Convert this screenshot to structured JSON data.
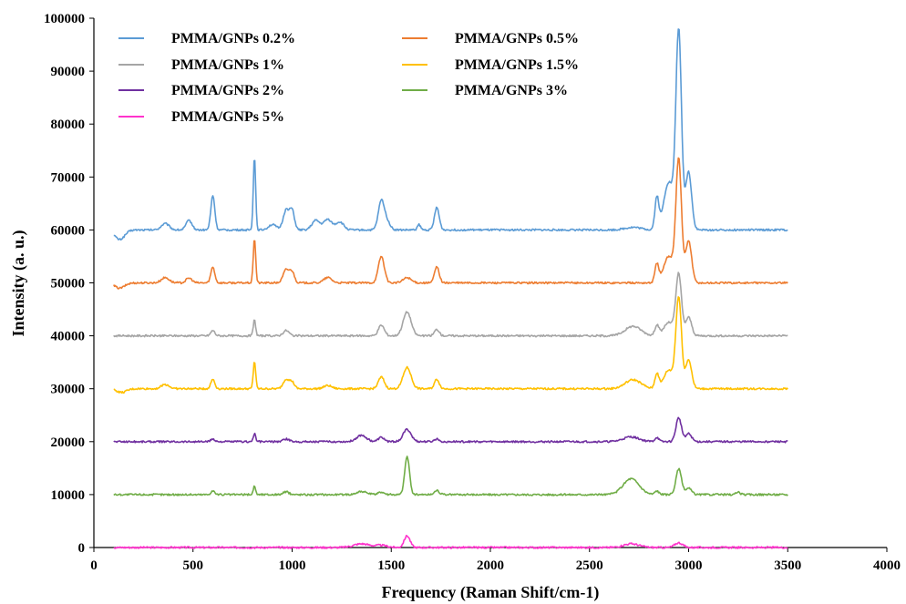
{
  "chart_data": {
    "type": "line",
    "xlabel": "Frequency (Raman Shift/cm-1)",
    "ylabel": "Intensity (a. u.)",
    "xlim": [
      0,
      4000
    ],
    "ylim": [
      0,
      100000
    ],
    "x_ticks": [
      "0",
      "500",
      "1000",
      "1500",
      "2000",
      "2500",
      "3000",
      "3500",
      "4000"
    ],
    "y_ticks": [
      "0",
      "10000",
      "20000",
      "30000",
      "40000",
      "50000",
      "60000",
      "70000",
      "80000",
      "90000",
      "100000"
    ],
    "grid": false,
    "legend_position": "top-left",
    "x_range": [
      100,
      3500
    ],
    "series": [
      {
        "name": "PMMA/GNPs 0.2%",
        "color": "#5B9BD5",
        "baseline": 60000,
        "peaks": [
          [
            100,
            0,
            1
          ],
          [
            130,
            -1800,
            25
          ],
          [
            360,
            1200,
            20
          ],
          [
            480,
            1800,
            15
          ],
          [
            600,
            6500,
            10
          ],
          [
            810,
            13800,
            6
          ],
          [
            900,
            1000,
            20
          ],
          [
            970,
            3800,
            15
          ],
          [
            1000,
            3500,
            12
          ],
          [
            1120,
            1800,
            20
          ],
          [
            1180,
            2000,
            20
          ],
          [
            1240,
            1500,
            20
          ],
          [
            1450,
            5500,
            15
          ],
          [
            1480,
            1500,
            15
          ],
          [
            1640,
            1000,
            8
          ],
          [
            1730,
            4200,
            12
          ],
          [
            2720,
            500,
            40
          ],
          [
            2840,
            6000,
            10
          ],
          [
            2900,
            9000,
            25
          ],
          [
            2950,
            37000,
            14
          ],
          [
            3000,
            11000,
            15
          ]
        ]
      },
      {
        "name": "PMMA/GNPs 0.5%",
        "color": "#ED7D31",
        "baseline": 50000,
        "peaks": [
          [
            100,
            0,
            1
          ],
          [
            130,
            -1000,
            25
          ],
          [
            360,
            1000,
            20
          ],
          [
            480,
            900,
            15
          ],
          [
            600,
            3000,
            10
          ],
          [
            810,
            8500,
            6
          ],
          [
            970,
            2500,
            15
          ],
          [
            1000,
            2000,
            12
          ],
          [
            1180,
            1000,
            20
          ],
          [
            1450,
            5000,
            15
          ],
          [
            1580,
            1000,
            20
          ],
          [
            1730,
            3000,
            12
          ],
          [
            2840,
            3500,
            10
          ],
          [
            2900,
            5000,
            25
          ],
          [
            2950,
            23000,
            14
          ],
          [
            3000,
            8000,
            15
          ]
        ]
      },
      {
        "name": "PMMA/GNPs 1%",
        "color": "#A5A5A5",
        "baseline": 40000,
        "peaks": [
          [
            600,
            1000,
            10
          ],
          [
            810,
            3000,
            6
          ],
          [
            970,
            1000,
            15
          ],
          [
            1450,
            2000,
            15
          ],
          [
            1580,
            4500,
            20
          ],
          [
            1730,
            1200,
            12
          ],
          [
            2720,
            1800,
            40
          ],
          [
            2840,
            2000,
            10
          ],
          [
            2900,
            2500,
            25
          ],
          [
            2950,
            11500,
            14
          ],
          [
            3000,
            3500,
            15
          ]
        ]
      },
      {
        "name": "PMMA/GNPs 1.5%",
        "color": "#FFC000",
        "baseline": 30000,
        "peaks": [
          [
            100,
            0,
            1
          ],
          [
            140,
            -700,
            25
          ],
          [
            360,
            800,
            20
          ],
          [
            600,
            1800,
            10
          ],
          [
            810,
            5200,
            6
          ],
          [
            970,
            1800,
            15
          ],
          [
            1000,
            1200,
            12
          ],
          [
            1180,
            600,
            20
          ],
          [
            1450,
            2200,
            15
          ],
          [
            1580,
            4000,
            20
          ],
          [
            1730,
            1800,
            12
          ],
          [
            2720,
            1700,
            40
          ],
          [
            2840,
            2800,
            10
          ],
          [
            2900,
            3500,
            25
          ],
          [
            2950,
            17000,
            14
          ],
          [
            3000,
            5500,
            15
          ]
        ]
      },
      {
        "name": "PMMA/GNPs 2%",
        "color": "#7030A0",
        "baseline": 20000,
        "peaks": [
          [
            600,
            500,
            10
          ],
          [
            810,
            1500,
            6
          ],
          [
            970,
            500,
            15
          ],
          [
            1350,
            1200,
            25
          ],
          [
            1450,
            800,
            15
          ],
          [
            1580,
            2300,
            20
          ],
          [
            1730,
            500,
            12
          ],
          [
            2710,
            900,
            40
          ],
          [
            2840,
            800,
            10
          ],
          [
            2950,
            4500,
            14
          ],
          [
            3000,
            1500,
            15
          ]
        ]
      },
      {
        "name": "PMMA/GNPs 3%",
        "color": "#70AD47",
        "baseline": 10000,
        "peaks": [
          [
            600,
            700,
            10
          ],
          [
            810,
            1600,
            6
          ],
          [
            970,
            500,
            15
          ],
          [
            1350,
            600,
            25
          ],
          [
            1450,
            500,
            15
          ],
          [
            1580,
            7200,
            12
          ],
          [
            1730,
            800,
            12
          ],
          [
            2710,
            3000,
            40
          ],
          [
            2840,
            700,
            10
          ],
          [
            2950,
            4800,
            14
          ],
          [
            3000,
            1200,
            15
          ],
          [
            3250,
            500,
            10
          ]
        ]
      },
      {
        "name": "PMMA/GNPs 5%",
        "color": "#FF33CC",
        "baseline": 0,
        "peaks": [
          [
            1350,
            700,
            40
          ],
          [
            1450,
            400,
            30
          ],
          [
            1580,
            2200,
            15
          ],
          [
            2710,
            700,
            40
          ],
          [
            2950,
            900,
            20
          ]
        ]
      }
    ]
  }
}
